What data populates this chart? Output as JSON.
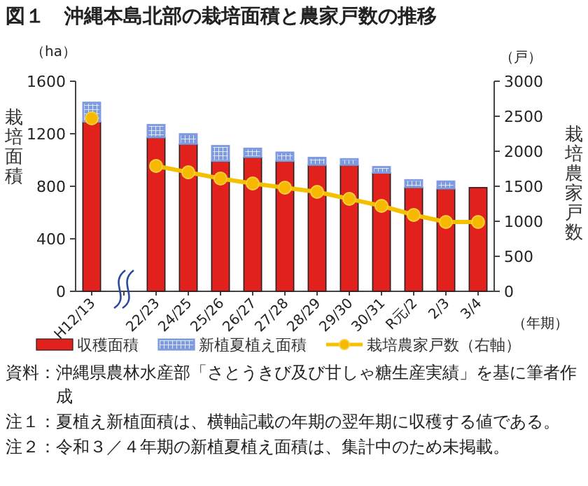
{
  "chart_data": {
    "type": "bar",
    "title": "図１　沖縄本島北部の栽培面積と農家戸数の推移",
    "categories": [
      "H12/13",
      null,
      "22/23",
      "24/25",
      "25/26",
      "26/27",
      "27/28",
      "28/29",
      "29/30",
      "30/31",
      "R元/2",
      "2/3",
      "3/4"
    ],
    "stacked": true,
    "series": [
      {
        "name": "収穫面積",
        "color": "#e3211c",
        "values": [
          1290,
          null,
          1170,
          1120,
          990,
          1020,
          990,
          960,
          960,
          900,
          790,
          780,
          790
        ]
      },
      {
        "name": "新植夏植え面積",
        "color": "#7f9be0",
        "values": [
          150,
          null,
          100,
          80,
          120,
          70,
          70,
          60,
          50,
          50,
          60,
          60,
          null
        ]
      },
      {
        "name": "栽培農家戸数（右軸）",
        "type": "line",
        "axis": "y2",
        "color": "#f5c000",
        "marker": "circle",
        "values": [
          2470,
          null,
          1790,
          1700,
          1610,
          1540,
          1480,
          1420,
          1320,
          1220,
          1090,
          990,
          990
        ]
      }
    ],
    "ylim": [
      0,
      1600
    ],
    "yticks": [
      0,
      400,
      800,
      1200,
      1600
    ],
    "y2lim": [
      0,
      3000
    ],
    "y2ticks": [
      0,
      500,
      1000,
      1500,
      2000,
      2500,
      3000
    ],
    "ylabel": "栽培面積",
    "y2label": "栽培農家戸数",
    "grid": false,
    "legend": "bottom",
    "annotations": [
      "（ha）",
      "（戸）",
      "（年期）",
      "資料：沖縄県農林水産部「さとうきび及び甘しゃ糖生産実績」を基に筆者作成",
      "注１：夏植え新植面積は、横軸記載の年期の翌年期に収穫する値である。",
      "注２：令和３／４年期の新植夏植え面積は、集計中のため未掲載。"
    ]
  }
}
